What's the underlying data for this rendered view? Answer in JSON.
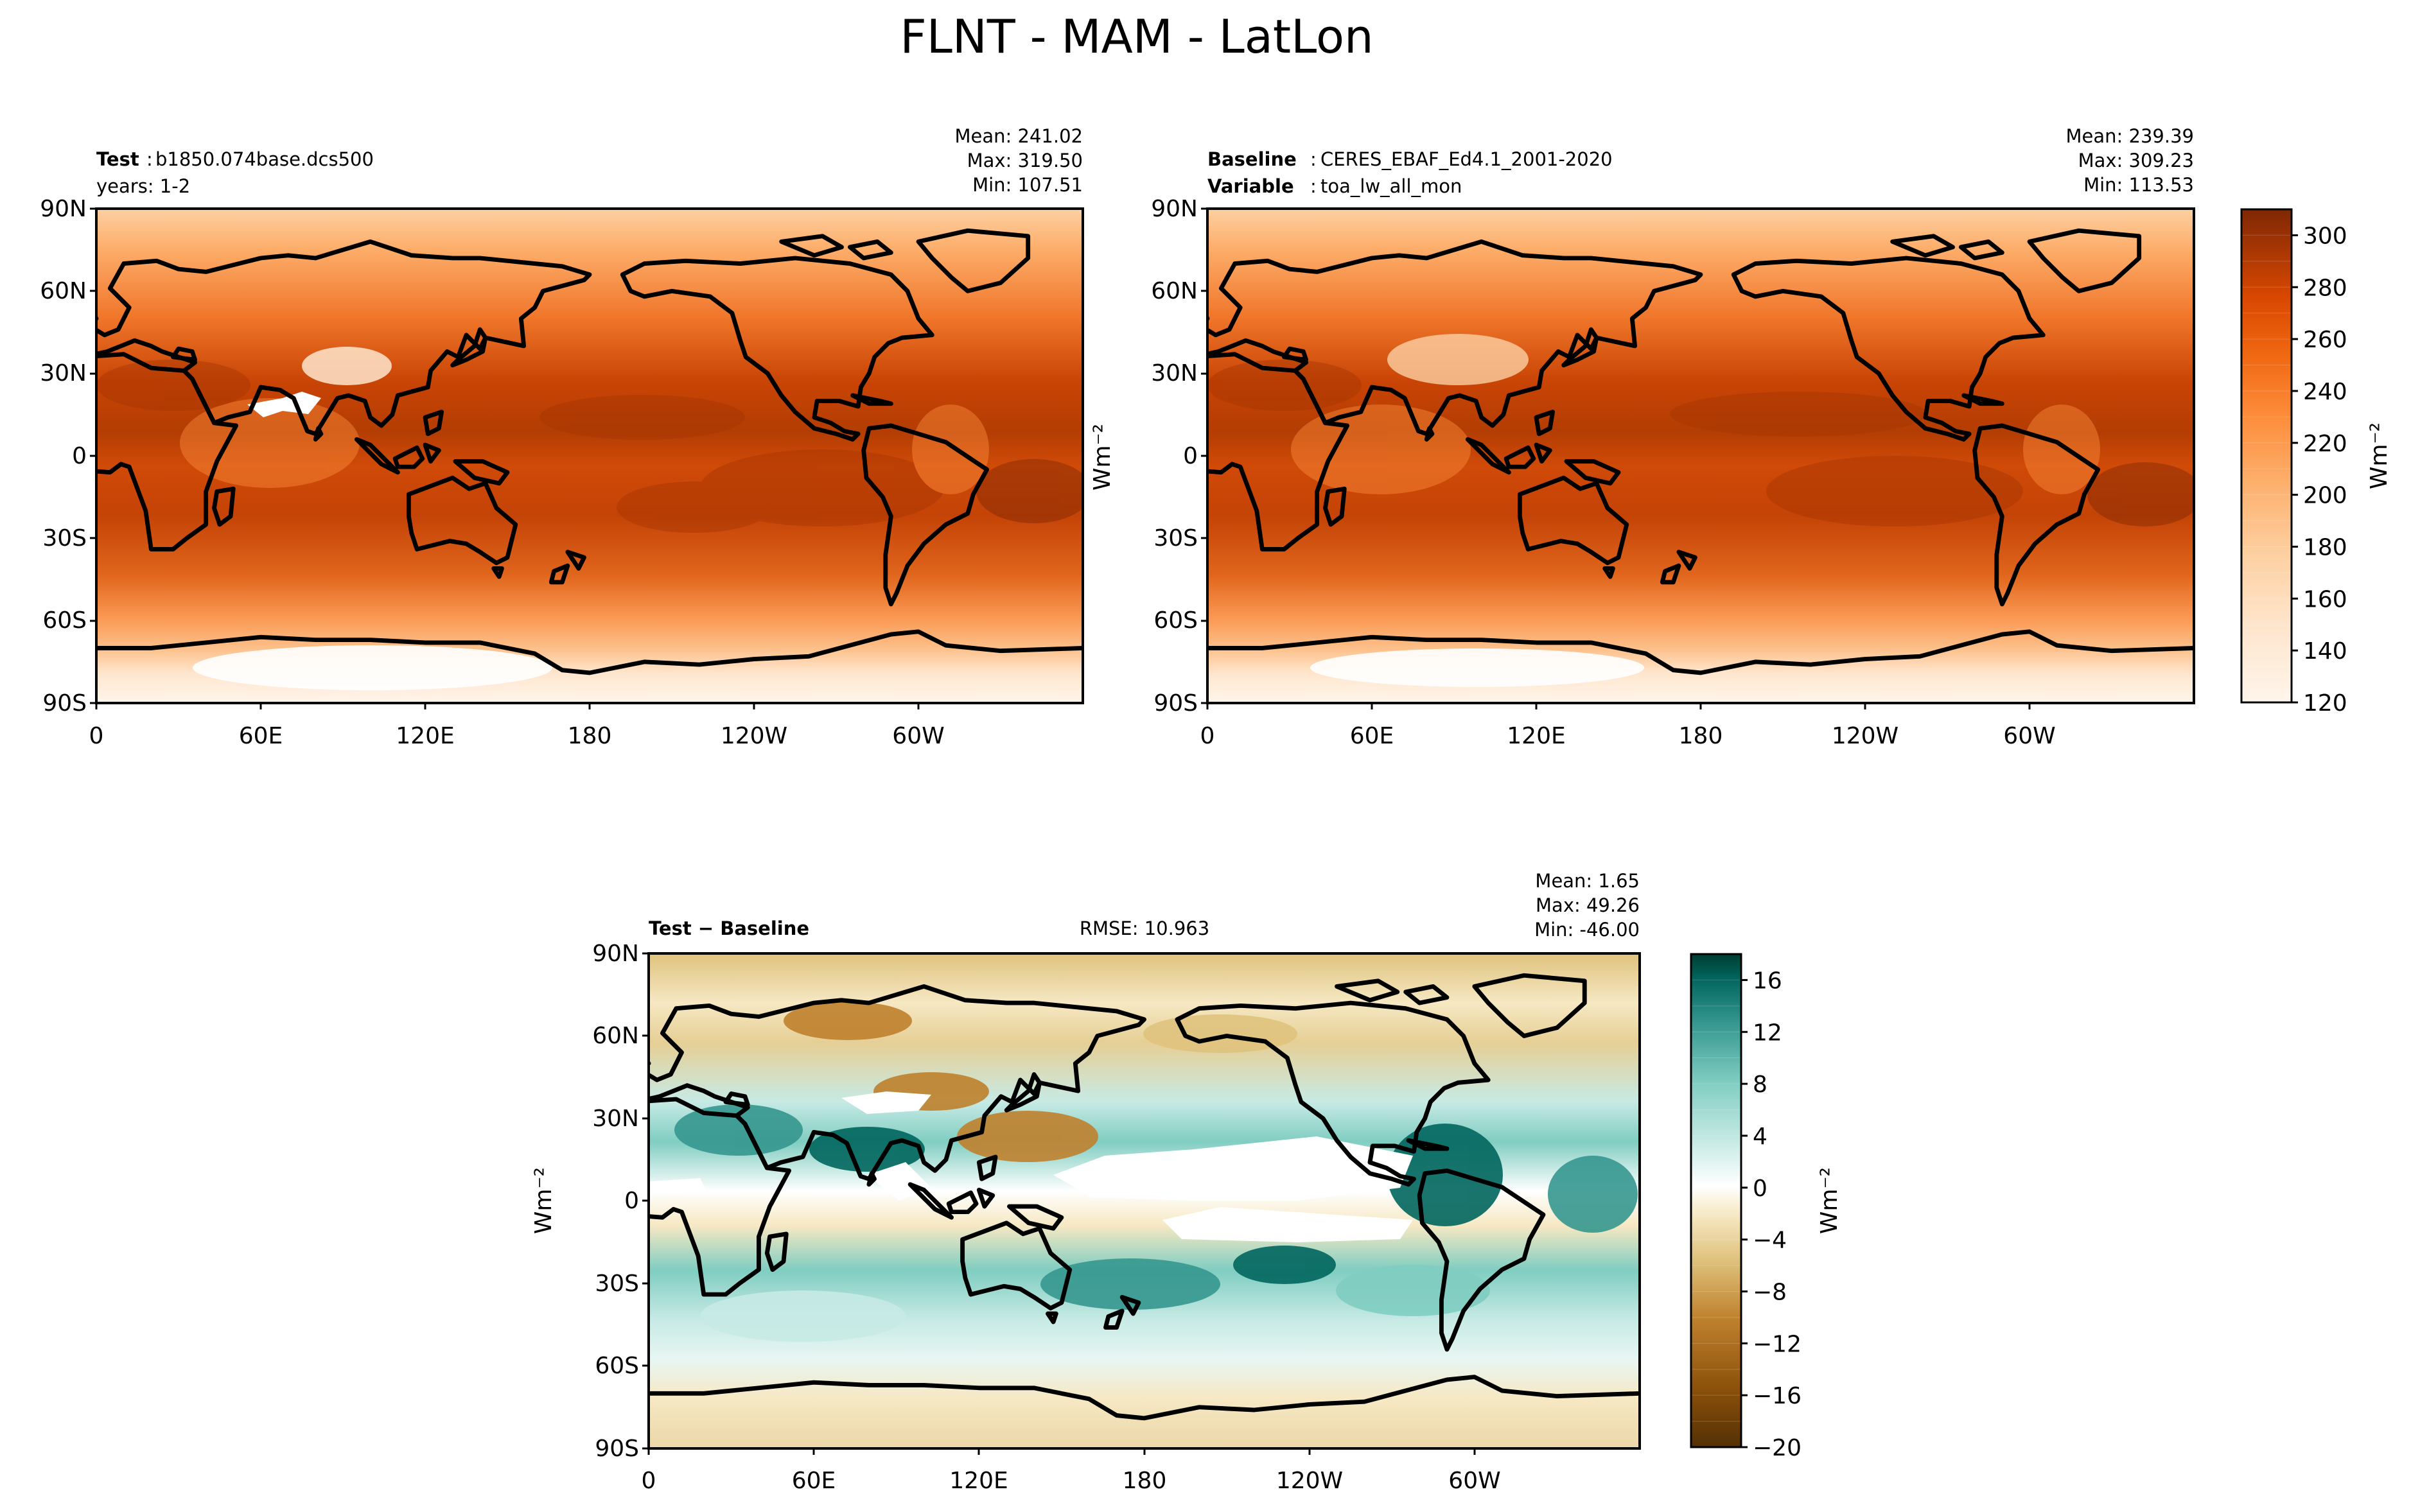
{
  "title": "FLNT - MAM - LatLon",
  "colors": {
    "coast": "#000000",
    "frame": "#000000",
    "orange_scale": [
      "#fff5eb",
      "#fee6ce",
      "#fdd0a2",
      "#fdae6b",
      "#fd8d3c",
      "#f16913",
      "#d94801",
      "#a63603",
      "#7f2704"
    ],
    "diff_scale": [
      "#543005",
      "#8c510a",
      "#bf812d",
      "#dfc27d",
      "#f6e8c3",
      "#ffffff",
      "#c7eae5",
      "#80cdc1",
      "#35978f",
      "#01665e",
      "#003c30"
    ]
  },
  "axes": {
    "lat_ticks": [
      "90N",
      "60N",
      "30N",
      "0",
      "30S",
      "60S",
      "90S"
    ],
    "lon_ticks": [
      "0",
      "60E",
      "120E",
      "180",
      "120W",
      "60W"
    ]
  },
  "chart_data": [
    {
      "type": "heatmap",
      "panel": "test",
      "header_bold": "Test",
      "header_text": "b1850.074base.dcs500",
      "subheader_text": "years: 1-2",
      "stats": {
        "mean": "Mean: 241.02",
        "max": "Max: 319.50",
        "min": "Min: 107.51"
      },
      "xlim": [
        0,
        360
      ],
      "ylim": [
        -90,
        90
      ]
    },
    {
      "type": "heatmap",
      "panel": "baseline",
      "header_bold": "Baseline",
      "header_text": "CERES_EBAF_Ed4.1_2001-2020",
      "subheader_bold": "Variable",
      "subheader_text": "toa_lw_all_mon",
      "stats": {
        "mean": "Mean: 239.39",
        "max": "Max: 309.23",
        "min": "Min: 113.53"
      },
      "xlim": [
        0,
        360
      ],
      "ylim": [
        -90,
        90
      ],
      "colorbar": {
        "ticks": [
          120,
          140,
          160,
          180,
          200,
          220,
          240,
          260,
          280,
          300
        ],
        "range": [
          120,
          310
        ],
        "label": "Wm⁻²"
      }
    },
    {
      "type": "heatmap",
      "panel": "difference",
      "header_bold": "Test − Baseline",
      "rmse": "RMSE: 10.963",
      "stats": {
        "mean": "Mean:  1.65",
        "max": "Max: 49.26",
        "min": "Min: -46.00"
      },
      "xlim": [
        0,
        360
      ],
      "ylim": [
        -90,
        90
      ],
      "ylabel": "Wm⁻²",
      "colorbar": {
        "ticks": [
          -20,
          -16,
          -12,
          -8,
          -4,
          0,
          4,
          8,
          12,
          16
        ],
        "tick_labels": [
          "−20",
          "−16",
          "−12",
          "−8",
          "−4",
          "0",
          "4",
          "8",
          "12",
          "16"
        ],
        "range": [
          -20,
          18
        ],
        "label": "Wm⁻²"
      }
    }
  ]
}
